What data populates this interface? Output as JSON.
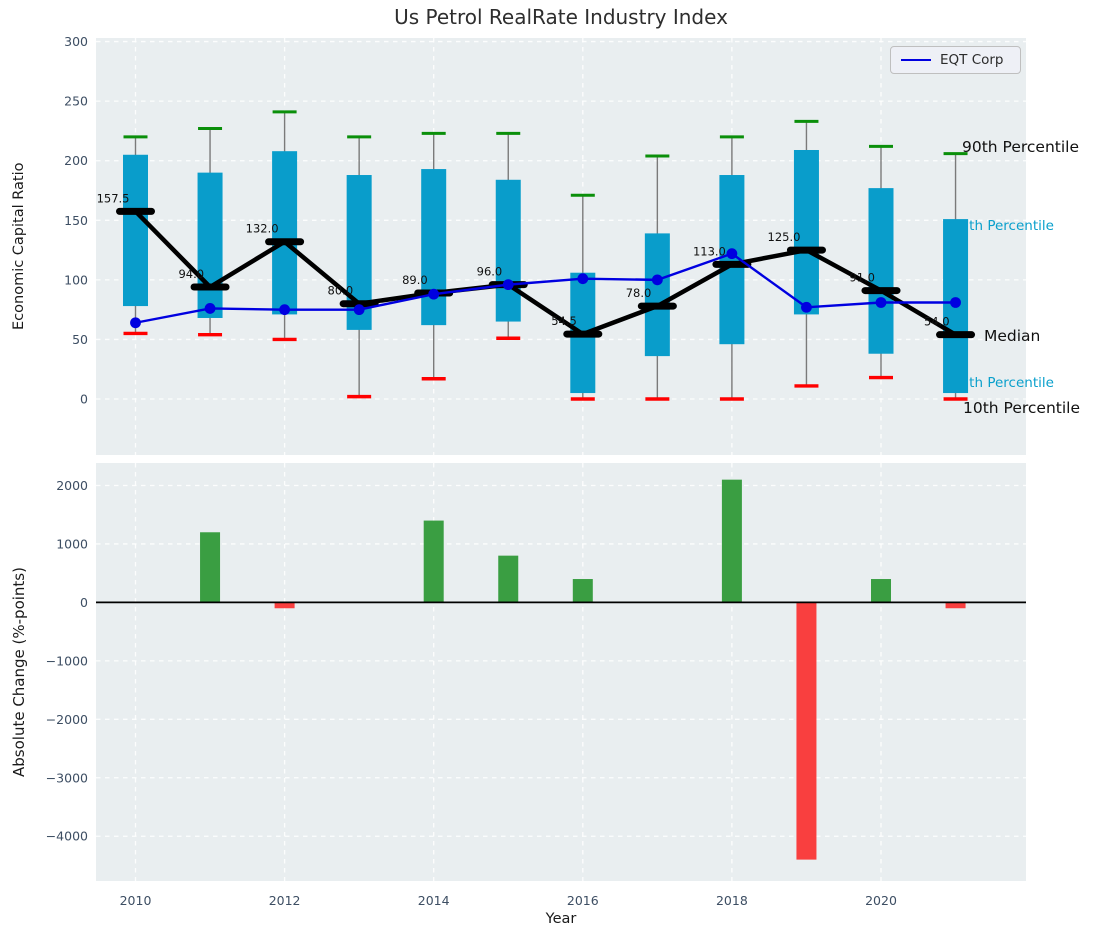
{
  "title": "Us Petrol RealRate Industry Index",
  "legend": {
    "label": "EQT Corp"
  },
  "annotations": {
    "p90": "90th Percentile",
    "p75": "75th Percentile",
    "median": "Median",
    "p25": "25th Percentile",
    "p10": "10th Percentile"
  },
  "colors": {
    "axes_background": "#e9eef0",
    "grid": "#ffffff",
    "tick_label": "#3d4e63",
    "box_fill": "#099dcb",
    "whisker": "#7a7a7a",
    "cap_top": "#0a8f0a",
    "cap_bottom": "#ff0000",
    "median": "#000000",
    "eqt_line": "#0000e0",
    "bar_positive": "#3a9e42",
    "bar_negative": "#f93f3f",
    "annotation_cyan": "#0aa0cc",
    "annotation_black": "#111111",
    "zero_line": "#000000"
  },
  "chart_data": [
    {
      "type": "boxplot+line",
      "title": "Us Petrol RealRate Industry Index",
      "ylabel": "Economic Capital Ratio",
      "ylim": [
        -47,
        303
      ],
      "yticks": [
        0,
        50,
        100,
        150,
        200,
        250,
        300
      ],
      "ytick_labels": [
        "0",
        "50",
        "100",
        "150",
        "200",
        "250",
        "300"
      ],
      "grid": true,
      "legend_position": "upper right",
      "x": [
        2010,
        2011,
        2012,
        2013,
        2014,
        2015,
        2016,
        2017,
        2018,
        2019,
        2020,
        2021
      ],
      "xticks": [
        2010,
        2012,
        2014,
        2016,
        2018,
        2020
      ],
      "series": [
        {
          "name": "90th Percentile",
          "values": [
            220,
            227,
            241,
            220,
            223,
            223,
            171,
            204,
            220,
            233,
            212,
            206
          ]
        },
        {
          "name": "75th Percentile",
          "values": [
            205,
            190,
            208,
            188,
            193,
            184,
            106,
            139,
            188,
            209,
            177,
            151
          ]
        },
        {
          "name": "Median",
          "values": [
            157.5,
            94.0,
            132.0,
            80.0,
            89.0,
            96.0,
            54.5,
            78.0,
            113.0,
            125.0,
            91.0,
            54.0
          ]
        },
        {
          "name": "25th Percentile",
          "values": [
            78,
            68,
            71,
            58,
            62,
            65,
            5,
            36,
            46,
            71,
            38,
            5
          ]
        },
        {
          "name": "10th Percentile",
          "values": [
            55,
            54,
            50,
            2,
            17,
            51,
            0,
            0,
            0,
            11,
            18,
            0
          ]
        },
        {
          "name": "EQT Corp",
          "values": [
            64,
            76,
            75,
            75,
            88,
            96,
            101,
            100,
            122,
            77,
            81,
            81
          ]
        }
      ],
      "median_labels": [
        "157.5",
        "94.0",
        "132.0",
        "80.0",
        "89.0",
        "96.0",
        "54.5",
        "78.0",
        "113.0",
        "125.0",
        "91.0",
        "54.0"
      ]
    },
    {
      "type": "bar",
      "ylabel": "Absolute Change (%-points)",
      "xlabel": "Year",
      "ylim": [
        -4766,
        2385
      ],
      "yticks": [
        2000,
        1000,
        0,
        -1000,
        -2000,
        -3000,
        -4000
      ],
      "ytick_labels": [
        "2000",
        "1000",
        "0",
        "−1000",
        "−2000",
        "−3000",
        "−4000"
      ],
      "grid": true,
      "x": [
        2010,
        2011,
        2012,
        2013,
        2014,
        2015,
        2016,
        2017,
        2018,
        2019,
        2020,
        2021
      ],
      "xticks": [
        2010,
        2012,
        2014,
        2016,
        2018,
        2020
      ],
      "xtick_labels": [
        "2010",
        "2012",
        "2014",
        "2016",
        "2018",
        "2020"
      ],
      "values": [
        0,
        1200,
        -100,
        0,
        1400,
        800,
        400,
        0,
        2100,
        -4400,
        400,
        -100
      ]
    }
  ]
}
